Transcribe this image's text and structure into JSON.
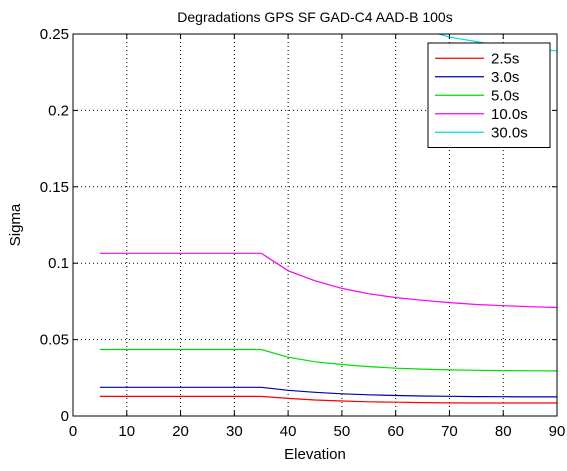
{
  "chart_data": {
    "type": "line",
    "title": "Degradations GPS SF GAD-C4 AAD-B 100s",
    "xlabel": "Elevation",
    "ylabel": "Sigma",
    "xlim": [
      0,
      90
    ],
    "ylim": [
      0,
      0.25
    ],
    "xticks": [
      0,
      10,
      20,
      30,
      40,
      50,
      60,
      70,
      80,
      90
    ],
    "xtick_labels": [
      "0",
      "10",
      "20",
      "30",
      "40",
      "50",
      "60",
      "70",
      "80",
      "90"
    ],
    "yticks": [
      0,
      0.05,
      0.1,
      0.15,
      0.2,
      0.25
    ],
    "ytick_labels": [
      "0",
      "0.05",
      "0.1",
      "0.15",
      "0.2",
      "0.25"
    ],
    "grid": true,
    "grid_style": "dotted",
    "legend_position": "top-right",
    "series": [
      {
        "name": "2.5s",
        "color": "#ff0000",
        "x": [
          5,
          10,
          15,
          20,
          25,
          30,
          35,
          40,
          45,
          50,
          55,
          60,
          65,
          70,
          75,
          80,
          85,
          90
        ],
        "y": [
          0.0128,
          0.0128,
          0.0128,
          0.0128,
          0.0128,
          0.0128,
          0.0128,
          0.0115,
          0.0105,
          0.0098,
          0.0093,
          0.009,
          0.0088,
          0.0086,
          0.0085,
          0.0085,
          0.0085,
          0.0085
        ]
      },
      {
        "name": "3.0s",
        "color": "#0000b0",
        "x": [
          5,
          10,
          15,
          20,
          25,
          30,
          35,
          40,
          45,
          50,
          55,
          60,
          65,
          70,
          75,
          80,
          85,
          90
        ],
        "y": [
          0.0188,
          0.0188,
          0.0188,
          0.0188,
          0.0188,
          0.0188,
          0.0188,
          0.0168,
          0.0155,
          0.0145,
          0.0139,
          0.0134,
          0.0131,
          0.0129,
          0.0127,
          0.0126,
          0.0125,
          0.0125
        ]
      },
      {
        "name": "5.0s",
        "color": "#00dd00",
        "x": [
          5,
          10,
          15,
          20,
          25,
          30,
          35,
          40,
          45,
          50,
          55,
          60,
          65,
          70,
          75,
          80,
          85,
          90
        ],
        "y": [
          0.0435,
          0.0435,
          0.0435,
          0.0435,
          0.0435,
          0.0435,
          0.0435,
          0.0385,
          0.0355,
          0.0337,
          0.0323,
          0.0313,
          0.0307,
          0.0302,
          0.0299,
          0.0297,
          0.0296,
          0.0295
        ]
      },
      {
        "name": "10.0s",
        "color": "#ff00ff",
        "x": [
          5,
          10,
          15,
          20,
          25,
          30,
          35,
          40,
          45,
          50,
          55,
          60,
          65,
          70,
          75,
          80,
          85,
          90
        ],
        "y": [
          0.1065,
          0.1065,
          0.1065,
          0.1065,
          0.1065,
          0.1065,
          0.1065,
          0.095,
          0.0885,
          0.0835,
          0.08,
          0.0775,
          0.0757,
          0.0742,
          0.073,
          0.0722,
          0.0715,
          0.071
        ]
      },
      {
        "name": "30.0s",
        "color": "#00e0e0",
        "x": [
          68,
          70,
          75,
          80,
          85,
          90
        ],
        "y": [
          0.25,
          0.248,
          0.245,
          0.242,
          0.24,
          0.239
        ]
      }
    ]
  }
}
